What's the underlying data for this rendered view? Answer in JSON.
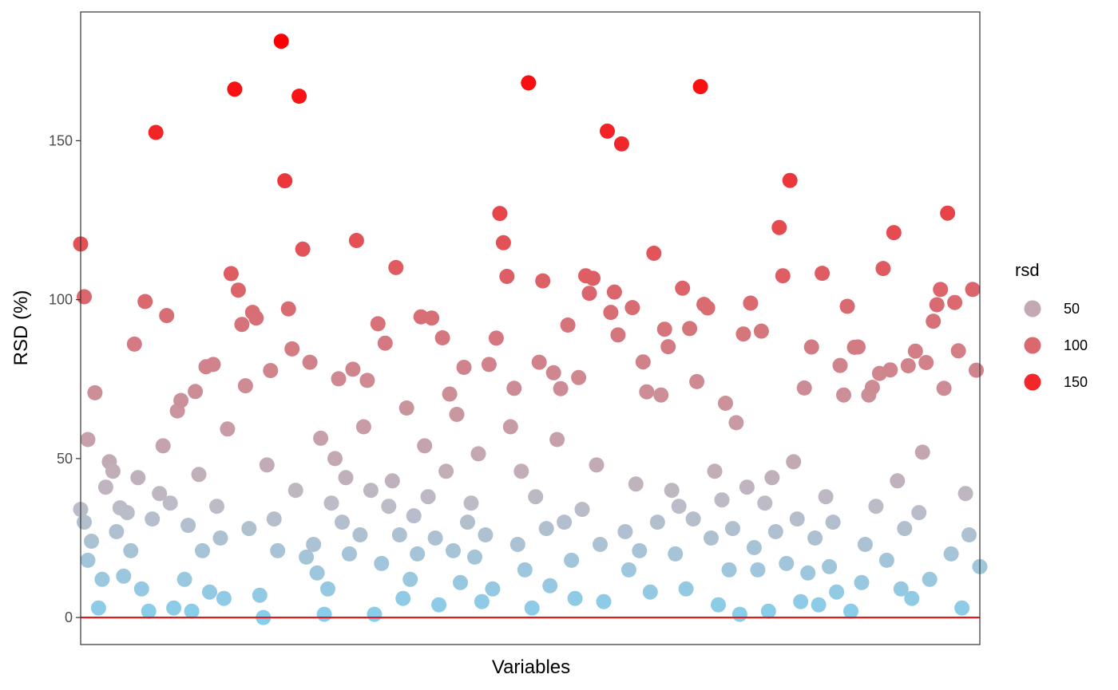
{
  "chart_data": {
    "type": "scatter",
    "title": "",
    "xlabel": "Variables",
    "ylabel": "RSD (%)",
    "ylim": [
      -8.5,
      190.5
    ],
    "yticks": [
      0,
      50,
      100,
      150
    ],
    "ytick_labels": [
      "0",
      "50",
      "100",
      "150"
    ],
    "grid": false,
    "reference_line": {
      "y": 0,
      "color": "#e41a1c"
    },
    "color_scale": {
      "low_value": 0,
      "low": "#87CEEB",
      "mid_value": 35,
      "mid": "#BCBCC8",
      "high_value": 180,
      "high": "#FF0000"
    },
    "legend": {
      "title": "rsd",
      "position": "right",
      "values": [
        50,
        100,
        150
      ],
      "labels": [
        "50",
        "100",
        "150"
      ]
    },
    "points": [
      {
        "x": 1,
        "y": 117.5
      },
      {
        "x": 2,
        "y": 100.9
      },
      {
        "x": 3,
        "y": 56
      },
      {
        "x": 5,
        "y": 70.7
      },
      {
        "x": 9,
        "y": 49
      },
      {
        "x": 12,
        "y": 34.5
      },
      {
        "x": 16,
        "y": 86
      },
      {
        "x": 19,
        "y": 99.4
      },
      {
        "x": 22,
        "y": 152.6
      },
      {
        "x": 25,
        "y": 95
      },
      {
        "x": 28,
        "y": 65
      },
      {
        "x": 29,
        "y": 68.3
      },
      {
        "x": 33,
        "y": 71.1
      },
      {
        "x": 36,
        "y": 78.9
      },
      {
        "x": 38,
        "y": 79.6
      },
      {
        "x": 42,
        "y": 59.3
      },
      {
        "x": 43,
        "y": 108.2
      },
      {
        "x": 44,
        "y": 166.2
      },
      {
        "x": 45,
        "y": 103
      },
      {
        "x": 46,
        "y": 92.2
      },
      {
        "x": 47,
        "y": 72.9
      },
      {
        "x": 49,
        "y": 96
      },
      {
        "x": 50,
        "y": 94.2
      },
      {
        "x": 54,
        "y": 77.7
      },
      {
        "x": 57,
        "y": 181.3
      },
      {
        "x": 58,
        "y": 137.4
      },
      {
        "x": 59,
        "y": 97.1
      },
      {
        "x": 60,
        "y": 84.5
      },
      {
        "x": 62,
        "y": 164
      },
      {
        "x": 63,
        "y": 115.9
      },
      {
        "x": 65,
        "y": 80.3
      },
      {
        "x": 68,
        "y": 56.4
      },
      {
        "x": 73,
        "y": 75.1
      },
      {
        "x": 77,
        "y": 78.1
      },
      {
        "x": 78,
        "y": 118.6
      },
      {
        "x": 81,
        "y": 74.6
      },
      {
        "x": 84,
        "y": 92.4
      },
      {
        "x": 86,
        "y": 86.3
      },
      {
        "x": 89,
        "y": 110.1
      },
      {
        "x": 92,
        "y": 65.9
      },
      {
        "x": 96,
        "y": 94.6
      },
      {
        "x": 99,
        "y": 94.2
      },
      {
        "x": 102,
        "y": 88
      },
      {
        "x": 104,
        "y": 70.3
      },
      {
        "x": 106,
        "y": 63.9
      },
      {
        "x": 108,
        "y": 78.7
      },
      {
        "x": 112,
        "y": 51.5
      },
      {
        "x": 115,
        "y": 79.6
      },
      {
        "x": 117,
        "y": 87.9
      },
      {
        "x": 118,
        "y": 127.1
      },
      {
        "x": 119,
        "y": 117.9
      },
      {
        "x": 120,
        "y": 107.3
      },
      {
        "x": 122,
        "y": 72.1
      },
      {
        "x": 126,
        "y": 168.2
      },
      {
        "x": 129,
        "y": 80.3
      },
      {
        "x": 130,
        "y": 105.9
      },
      {
        "x": 133,
        "y": 77
      },
      {
        "x": 135,
        "y": 72
      },
      {
        "x": 137,
        "y": 92
      },
      {
        "x": 140,
        "y": 75.5
      },
      {
        "x": 142,
        "y": 107.5
      },
      {
        "x": 143,
        "y": 102
      },
      {
        "x": 144,
        "y": 106.7
      },
      {
        "x": 148,
        "y": 153
      },
      {
        "x": 149,
        "y": 96
      },
      {
        "x": 150,
        "y": 102.4
      },
      {
        "x": 151,
        "y": 88.9
      },
      {
        "x": 152,
        "y": 149
      },
      {
        "x": 155,
        "y": 97.5
      },
      {
        "x": 158,
        "y": 80.4
      },
      {
        "x": 159,
        "y": 71
      },
      {
        "x": 161,
        "y": 114.6
      },
      {
        "x": 163,
        "y": 70
      },
      {
        "x": 164,
        "y": 90.7
      },
      {
        "x": 165,
        "y": 85.2
      },
      {
        "x": 169,
        "y": 103.6
      },
      {
        "x": 171,
        "y": 90.9
      },
      {
        "x": 173,
        "y": 74.2
      },
      {
        "x": 174,
        "y": 167
      },
      {
        "x": 175,
        "y": 98.5
      },
      {
        "x": 176,
        "y": 97.4
      },
      {
        "x": 181,
        "y": 67.4
      },
      {
        "x": 184,
        "y": 61.3
      },
      {
        "x": 186,
        "y": 89.2
      },
      {
        "x": 188,
        "y": 98.9
      },
      {
        "x": 191,
        "y": 90.1
      },
      {
        "x": 196,
        "y": 122.7
      },
      {
        "x": 197,
        "y": 107.5
      },
      {
        "x": 199,
        "y": 137.5
      },
      {
        "x": 203,
        "y": 72.2
      },
      {
        "x": 205,
        "y": 85.1
      },
      {
        "x": 208,
        "y": 108.3
      },
      {
        "x": 213,
        "y": 79.3
      },
      {
        "x": 214,
        "y": 70
      },
      {
        "x": 215,
        "y": 97.9
      },
      {
        "x": 217,
        "y": 85
      },
      {
        "x": 218,
        "y": 85.1
      },
      {
        "x": 221,
        "y": 70
      },
      {
        "x": 222,
        "y": 72.4
      },
      {
        "x": 224,
        "y": 76.8
      },
      {
        "x": 225,
        "y": 109.8
      },
      {
        "x": 227,
        "y": 77.9
      },
      {
        "x": 228,
        "y": 121.1
      },
      {
        "x": 232,
        "y": 79.2
      },
      {
        "x": 234,
        "y": 83.8
      },
      {
        "x": 237,
        "y": 80.2
      },
      {
        "x": 239,
        "y": 93.2
      },
      {
        "x": 240,
        "y": 98.4
      },
      {
        "x": 241,
        "y": 103.2
      },
      {
        "x": 242,
        "y": 72.1
      },
      {
        "x": 243,
        "y": 127.2
      },
      {
        "x": 245,
        "y": 99.1
      },
      {
        "x": 246,
        "y": 83.9
      },
      {
        "x": 250,
        "y": 103.2
      },
      {
        "x": 251,
        "y": 77.8
      },
      {
        "x": 1,
        "y": 34
      },
      {
        "x": 2,
        "y": 30
      },
      {
        "x": 3,
        "y": 18
      },
      {
        "x": 4,
        "y": 24
      },
      {
        "x": 6,
        "y": 3
      },
      {
        "x": 7,
        "y": 12
      },
      {
        "x": 8,
        "y": 41
      },
      {
        "x": 10,
        "y": 46
      },
      {
        "x": 11,
        "y": 27
      },
      {
        "x": 13,
        "y": 13
      },
      {
        "x": 14,
        "y": 33
      },
      {
        "x": 15,
        "y": 21
      },
      {
        "x": 17,
        "y": 44
      },
      {
        "x": 18,
        "y": 9
      },
      {
        "x": 20,
        "y": 2
      },
      {
        "x": 21,
        "y": 31
      },
      {
        "x": 23,
        "y": 39
      },
      {
        "x": 24,
        "y": 54
      },
      {
        "x": 26,
        "y": 36
      },
      {
        "x": 27,
        "y": 3
      },
      {
        "x": 30,
        "y": 12
      },
      {
        "x": 31,
        "y": 29
      },
      {
        "x": 32,
        "y": 2
      },
      {
        "x": 34,
        "y": 45
      },
      {
        "x": 35,
        "y": 21
      },
      {
        "x": 37,
        "y": 8
      },
      {
        "x": 39,
        "y": 35
      },
      {
        "x": 40,
        "y": 25
      },
      {
        "x": 41,
        "y": 6
      },
      {
        "x": 48,
        "y": 28
      },
      {
        "x": 51,
        "y": 7
      },
      {
        "x": 52,
        "y": 0
      },
      {
        "x": 53,
        "y": 48
      },
      {
        "x": 55,
        "y": 31
      },
      {
        "x": 56,
        "y": 21
      },
      {
        "x": 61,
        "y": 40
      },
      {
        "x": 64,
        "y": 19
      },
      {
        "x": 66,
        "y": 23
      },
      {
        "x": 67,
        "y": 14
      },
      {
        "x": 69,
        "y": 1
      },
      {
        "x": 70,
        "y": 9
      },
      {
        "x": 71,
        "y": 36
      },
      {
        "x": 72,
        "y": 50
      },
      {
        "x": 74,
        "y": 30
      },
      {
        "x": 75,
        "y": 44
      },
      {
        "x": 76,
        "y": 20
      },
      {
        "x": 79,
        "y": 26
      },
      {
        "x": 80,
        "y": 60
      },
      {
        "x": 82,
        "y": 40
      },
      {
        "x": 83,
        "y": 1
      },
      {
        "x": 85,
        "y": 17
      },
      {
        "x": 87,
        "y": 35
      },
      {
        "x": 88,
        "y": 43
      },
      {
        "x": 90,
        "y": 26
      },
      {
        "x": 91,
        "y": 6
      },
      {
        "x": 93,
        "y": 12
      },
      {
        "x": 94,
        "y": 32
      },
      {
        "x": 95,
        "y": 20
      },
      {
        "x": 97,
        "y": 54
      },
      {
        "x": 98,
        "y": 38
      },
      {
        "x": 100,
        "y": 25
      },
      {
        "x": 101,
        "y": 4
      },
      {
        "x": 103,
        "y": 46
      },
      {
        "x": 105,
        "y": 21
      },
      {
        "x": 107,
        "y": 11
      },
      {
        "x": 109,
        "y": 30
      },
      {
        "x": 110,
        "y": 36
      },
      {
        "x": 111,
        "y": 19
      },
      {
        "x": 113,
        "y": 5
      },
      {
        "x": 114,
        "y": 26
      },
      {
        "x": 116,
        "y": 9
      },
      {
        "x": 121,
        "y": 60
      },
      {
        "x": 123,
        "y": 23
      },
      {
        "x": 124,
        "y": 46
      },
      {
        "x": 125,
        "y": 15
      },
      {
        "x": 127,
        "y": 3
      },
      {
        "x": 128,
        "y": 38
      },
      {
        "x": 131,
        "y": 28
      },
      {
        "x": 132,
        "y": 10
      },
      {
        "x": 134,
        "y": 56
      },
      {
        "x": 136,
        "y": 30
      },
      {
        "x": 138,
        "y": 18
      },
      {
        "x": 139,
        "y": 6
      },
      {
        "x": 141,
        "y": 34
      },
      {
        "x": 145,
        "y": 48
      },
      {
        "x": 146,
        "y": 23
      },
      {
        "x": 147,
        "y": 5
      },
      {
        "x": 153,
        "y": 27
      },
      {
        "x": 154,
        "y": 15
      },
      {
        "x": 156,
        "y": 42
      },
      {
        "x": 157,
        "y": 21
      },
      {
        "x": 160,
        "y": 8
      },
      {
        "x": 162,
        "y": 30
      },
      {
        "x": 166,
        "y": 40
      },
      {
        "x": 167,
        "y": 20
      },
      {
        "x": 168,
        "y": 35
      },
      {
        "x": 170,
        "y": 9
      },
      {
        "x": 172,
        "y": 31
      },
      {
        "x": 177,
        "y": 25
      },
      {
        "x": 178,
        "y": 46
      },
      {
        "x": 179,
        "y": 4
      },
      {
        "x": 180,
        "y": 37
      },
      {
        "x": 182,
        "y": 15
      },
      {
        "x": 183,
        "y": 28
      },
      {
        "x": 185,
        "y": 1
      },
      {
        "x": 187,
        "y": 41
      },
      {
        "x": 189,
        "y": 22
      },
      {
        "x": 190,
        "y": 15
      },
      {
        "x": 192,
        "y": 36
      },
      {
        "x": 193,
        "y": 2
      },
      {
        "x": 194,
        "y": 44
      },
      {
        "x": 195,
        "y": 27
      },
      {
        "x": 198,
        "y": 17
      },
      {
        "x": 200,
        "y": 49
      },
      {
        "x": 201,
        "y": 31
      },
      {
        "x": 202,
        "y": 5
      },
      {
        "x": 204,
        "y": 14
      },
      {
        "x": 206,
        "y": 25
      },
      {
        "x": 207,
        "y": 4
      },
      {
        "x": 209,
        "y": 38
      },
      {
        "x": 210,
        "y": 16
      },
      {
        "x": 211,
        "y": 30
      },
      {
        "x": 212,
        "y": 8
      },
      {
        "x": 216,
        "y": 2
      },
      {
        "x": 219,
        "y": 11
      },
      {
        "x": 220,
        "y": 23
      },
      {
        "x": 223,
        "y": 35
      },
      {
        "x": 226,
        "y": 18
      },
      {
        "x": 229,
        "y": 43
      },
      {
        "x": 230,
        "y": 9
      },
      {
        "x": 231,
        "y": 28
      },
      {
        "x": 233,
        "y": 6
      },
      {
        "x": 235,
        "y": 33
      },
      {
        "x": 236,
        "y": 52
      },
      {
        "x": 238,
        "y": 12
      },
      {
        "x": 244,
        "y": 20
      },
      {
        "x": 247,
        "y": 3
      },
      {
        "x": 248,
        "y": 39
      },
      {
        "x": 249,
        "y": 26
      },
      {
        "x": 252,
        "y": 16
      }
    ]
  }
}
